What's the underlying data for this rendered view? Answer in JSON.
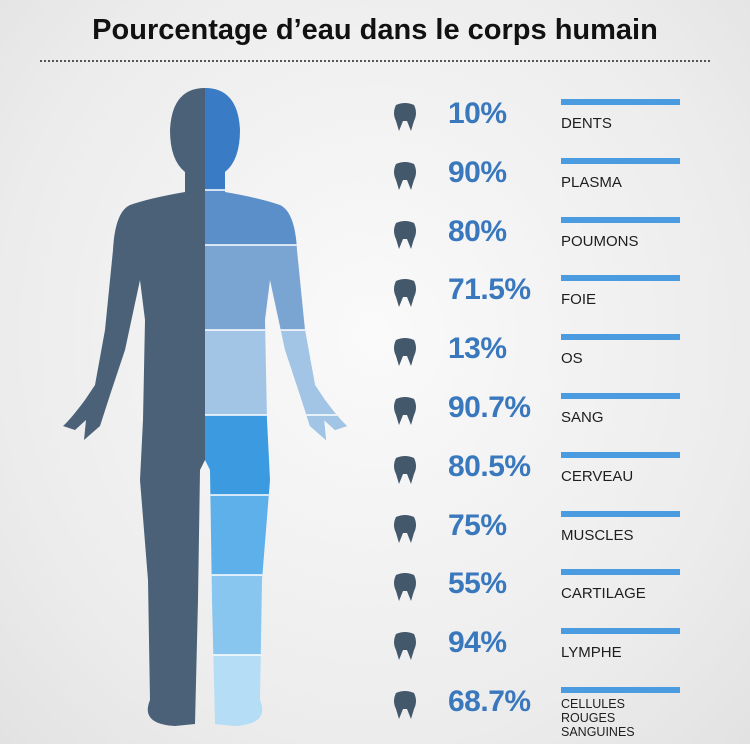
{
  "title": "Pourcentage d’eau dans le corps humain",
  "items": [
    {
      "percent": "10%",
      "label": "DENTS"
    },
    {
      "percent": "90%",
      "label": "PLASMA"
    },
    {
      "percent": "80%",
      "label": "POUMONS"
    },
    {
      "percent": "71.5%",
      "label": "FOIE"
    },
    {
      "percent": "13%",
      "label": "OS"
    },
    {
      "percent": "90.7%",
      "label": "SANG"
    },
    {
      "percent": "80.5%",
      "label": "CERVEAU"
    },
    {
      "percent": "75%",
      "label": "MUSCLES"
    },
    {
      "percent": "55%",
      "label": "CARTILAGE"
    },
    {
      "percent": "94%",
      "label": "LYMPHE"
    },
    {
      "percent": "68.7%",
      "label": "CELLULES ROUGES SANGUINES"
    }
  ]
}
